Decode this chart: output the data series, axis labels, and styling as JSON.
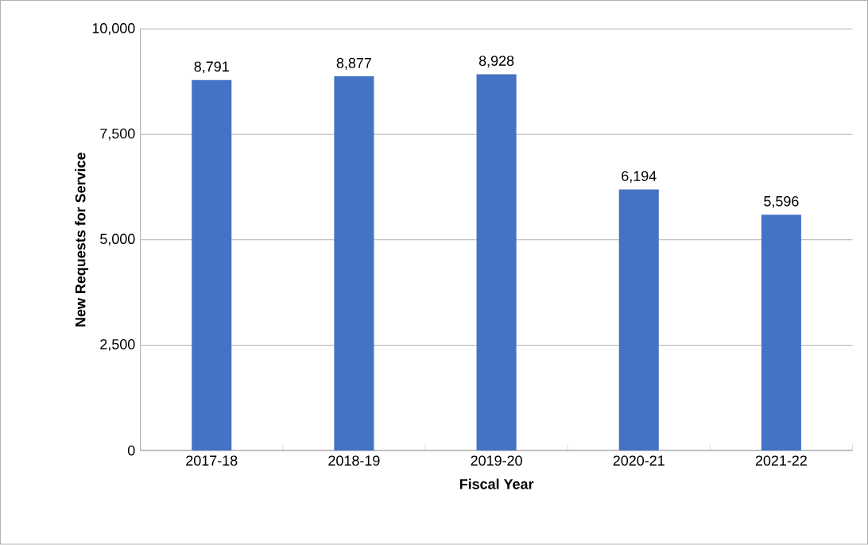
{
  "chart_data": {
    "type": "bar",
    "xlabel": "Fiscal Year",
    "ylabel": "New Requests for Service",
    "categories": [
      "2017-18",
      "2018-19",
      "2019-20",
      "2020-21",
      "2021-22"
    ],
    "values": [
      8791,
      8877,
      8928,
      6194,
      5596
    ],
    "value_labels": [
      "8,791",
      "8,877",
      "8,928",
      "6,194",
      "5,596"
    ],
    "color": "#4472c4",
    "ylim": [
      0,
      10000
    ],
    "yticks": [
      0,
      {
        "value": 2500,
        "label": "2,500"
      },
      {
        "value": 5000,
        "label": "5,000"
      },
      {
        "value": 7500,
        "label": "7,500"
      },
      {
        "value": 10000,
        "label": "10,000"
      }
    ],
    "grid": "y"
  }
}
